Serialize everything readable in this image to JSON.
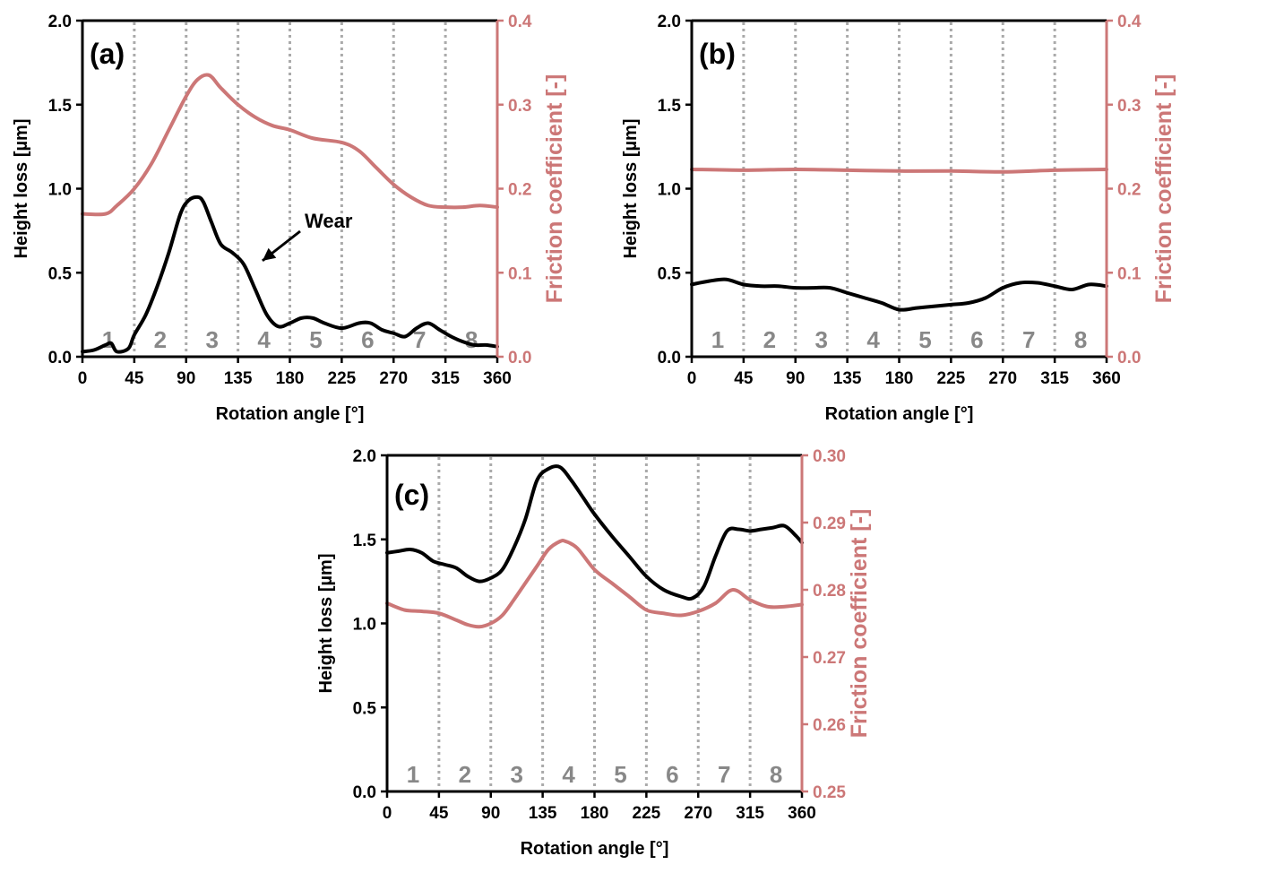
{
  "figure": {
    "colors": {
      "height": "#000000",
      "friction": "#cc7777",
      "divider": "#aaaaaa",
      "sector_label": "#888888",
      "axis": "#000000"
    }
  },
  "chart_data": [
    {
      "id": "a",
      "panel_label": "(a)",
      "type": "line",
      "xlabel": "Rotation angle [°]",
      "ylabel_left": "Height loss [µm]",
      "ylabel_right": "Friction coefficient [-]",
      "xlim": [
        0,
        360
      ],
      "ylim_left": [
        0,
        2.0
      ],
      "ylim_right": [
        0,
        0.4
      ],
      "x_ticks": [
        "0",
        "45",
        "90",
        "135",
        "180",
        "225",
        "270",
        "315",
        "360"
      ],
      "y_ticks_left": [
        "0.0",
        "0.5",
        "1.0",
        "1.5",
        "2.0"
      ],
      "y_ticks_right": [
        "0.0",
        "0.1",
        "0.2",
        "0.3",
        "0.4"
      ],
      "sector_labels": [
        "1",
        "2",
        "3",
        "4",
        "5",
        "6",
        "7",
        "8"
      ],
      "annotation": {
        "text": "Wear",
        "x": 150,
        "y": 0.55
      },
      "series": [
        {
          "axis": "left",
          "x": [
            0,
            10,
            20,
            25,
            30,
            40,
            45,
            55,
            65,
            75,
            85,
            92,
            100,
            105,
            112,
            120,
            130,
            140,
            150,
            160,
            170,
            180,
            190,
            200,
            210,
            225,
            240,
            250,
            260,
            270,
            280,
            290,
            300,
            310,
            320,
            330,
            340,
            350,
            360
          ],
          "y": [
            0.03,
            0.04,
            0.07,
            0.08,
            0.03,
            0.05,
            0.13,
            0.25,
            0.42,
            0.62,
            0.85,
            0.93,
            0.95,
            0.92,
            0.8,
            0.67,
            0.62,
            0.55,
            0.4,
            0.25,
            0.18,
            0.2,
            0.23,
            0.23,
            0.2,
            0.17,
            0.2,
            0.2,
            0.16,
            0.14,
            0.12,
            0.17,
            0.2,
            0.16,
            0.12,
            0.09,
            0.07,
            0.07,
            0.06
          ]
        },
        {
          "axis": "right",
          "x": [
            0,
            20,
            30,
            45,
            60,
            75,
            90,
            100,
            110,
            120,
            135,
            150,
            165,
            180,
            200,
            225,
            240,
            255,
            270,
            285,
            300,
            315,
            330,
            345,
            360
          ],
          "y": [
            0.17,
            0.17,
            0.18,
            0.2,
            0.23,
            0.27,
            0.31,
            0.33,
            0.335,
            0.32,
            0.3,
            0.285,
            0.275,
            0.27,
            0.26,
            0.255,
            0.245,
            0.225,
            0.205,
            0.19,
            0.18,
            0.178,
            0.178,
            0.18,
            0.178
          ]
        }
      ]
    },
    {
      "id": "b",
      "panel_label": "(b)",
      "type": "line",
      "xlabel": "Rotation angle [°]",
      "ylabel_left": "Height loss [µm]",
      "ylabel_right": "Friction coefficient [-]",
      "xlim": [
        0,
        360
      ],
      "ylim_left": [
        0,
        2.0
      ],
      "ylim_right": [
        0,
        0.4
      ],
      "x_ticks": [
        "0",
        "45",
        "90",
        "135",
        "180",
        "225",
        "270",
        "315",
        "360"
      ],
      "y_ticks_left": [
        "0.0",
        "0.5",
        "1.0",
        "1.5",
        "2.0"
      ],
      "y_ticks_right": [
        "0.0",
        "0.1",
        "0.2",
        "0.3",
        "0.4"
      ],
      "sector_labels": [
        "1",
        "2",
        "3",
        "4",
        "5",
        "6",
        "7",
        "8"
      ],
      "series": [
        {
          "axis": "left",
          "x": [
            0,
            15,
            30,
            45,
            60,
            75,
            90,
            105,
            120,
            135,
            150,
            165,
            180,
            195,
            210,
            225,
            240,
            255,
            270,
            285,
            300,
            315,
            330,
            345,
            360
          ],
          "y": [
            0.43,
            0.45,
            0.46,
            0.43,
            0.42,
            0.42,
            0.41,
            0.41,
            0.41,
            0.38,
            0.35,
            0.32,
            0.28,
            0.29,
            0.3,
            0.31,
            0.32,
            0.35,
            0.41,
            0.44,
            0.44,
            0.42,
            0.4,
            0.43,
            0.42
          ]
        },
        {
          "axis": "right",
          "x": [
            0,
            45,
            90,
            135,
            180,
            225,
            270,
            315,
            360
          ],
          "y": [
            0.223,
            0.222,
            0.223,
            0.222,
            0.221,
            0.221,
            0.22,
            0.222,
            0.223
          ]
        }
      ]
    },
    {
      "id": "c",
      "panel_label": "(c)",
      "type": "line",
      "xlabel": "Rotation angle [°]",
      "ylabel_left": "Height loss [µm]",
      "ylabel_right": "Friction coefficient [-]",
      "xlim": [
        0,
        360
      ],
      "ylim_left": [
        0,
        2.0
      ],
      "ylim_right": [
        0.25,
        0.3
      ],
      "x_ticks": [
        "0",
        "45",
        "90",
        "135",
        "180",
        "225",
        "270",
        "315",
        "360"
      ],
      "y_ticks_left": [
        "0.0",
        "0.5",
        "1.0",
        "1.5",
        "2.0"
      ],
      "y_ticks_right": [
        "0.25",
        "0.26",
        "0.27",
        "0.28",
        "0.29",
        "0.30"
      ],
      "sector_labels": [
        "1",
        "2",
        "3",
        "4",
        "5",
        "6",
        "7",
        "8"
      ],
      "series": [
        {
          "axis": "left",
          "x": [
            0,
            10,
            20,
            30,
            40,
            50,
            60,
            70,
            80,
            90,
            100,
            110,
            120,
            130,
            140,
            150,
            160,
            170,
            180,
            195,
            210,
            225,
            240,
            255,
            265,
            275,
            285,
            295,
            305,
            315,
            325,
            335,
            345,
            355,
            360
          ],
          "y": [
            1.42,
            1.43,
            1.44,
            1.42,
            1.37,
            1.35,
            1.33,
            1.28,
            1.25,
            1.27,
            1.32,
            1.45,
            1.62,
            1.85,
            1.92,
            1.93,
            1.85,
            1.75,
            1.65,
            1.52,
            1.4,
            1.28,
            1.2,
            1.16,
            1.15,
            1.22,
            1.4,
            1.55,
            1.56,
            1.55,
            1.56,
            1.57,
            1.58,
            1.52,
            1.48
          ]
        },
        {
          "axis": "right",
          "x": [
            0,
            15,
            30,
            45,
            60,
            70,
            80,
            90,
            100,
            110,
            120,
            130,
            140,
            150,
            155,
            165,
            180,
            195,
            210,
            225,
            240,
            255,
            270,
            285,
            300,
            315,
            330,
            345,
            360
          ],
          "y": [
            0.278,
            0.277,
            0.2768,
            0.2765,
            0.2755,
            0.2748,
            0.2745,
            0.275,
            0.2762,
            0.2785,
            0.281,
            0.2835,
            0.286,
            0.2872,
            0.2872,
            0.2862,
            0.283,
            0.281,
            0.279,
            0.277,
            0.2765,
            0.2762,
            0.2768,
            0.278,
            0.28,
            0.2785,
            0.2775,
            0.2775,
            0.2778
          ]
        }
      ]
    }
  ]
}
